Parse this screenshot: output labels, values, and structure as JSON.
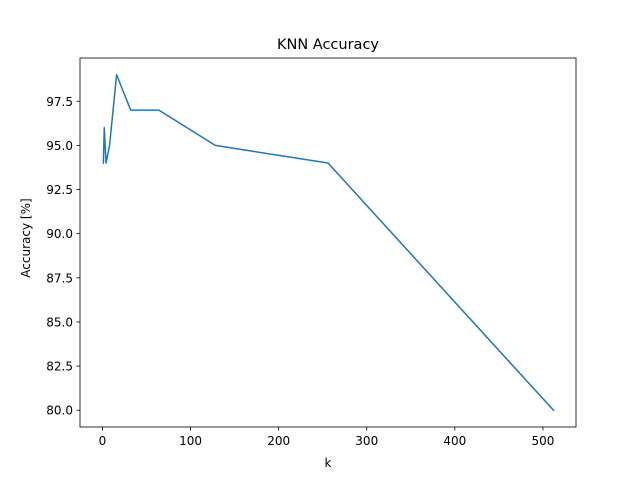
{
  "chart_data": {
    "type": "line",
    "title": "KNN Accuracy",
    "xlabel": "k",
    "ylabel": "Accuracy [%]",
    "xlim": [
      -25.55,
      537.55
    ],
    "ylim": [
      79.05,
      99.95
    ],
    "xticks": [
      0,
      100,
      200,
      300,
      400,
      500
    ],
    "xtick_labels": [
      "0",
      "100",
      "200",
      "300",
      "400",
      "500"
    ],
    "yticks": [
      80.0,
      82.5,
      85.0,
      87.5,
      90.0,
      92.5,
      95.0,
      97.5
    ],
    "ytick_labels": [
      "80.0",
      "82.5",
      "85.0",
      "87.5",
      "90.0",
      "92.5",
      "95.0",
      "97.5"
    ],
    "grid": false,
    "legend": "none",
    "series": [
      {
        "color": "#1f77b4",
        "x": [
          1,
          2,
          4,
          8,
          16,
          32,
          64,
          128,
          256,
          512
        ],
        "y": [
          94,
          96,
          94,
          95,
          99,
          97,
          97,
          95,
          94,
          80
        ]
      }
    ]
  }
}
